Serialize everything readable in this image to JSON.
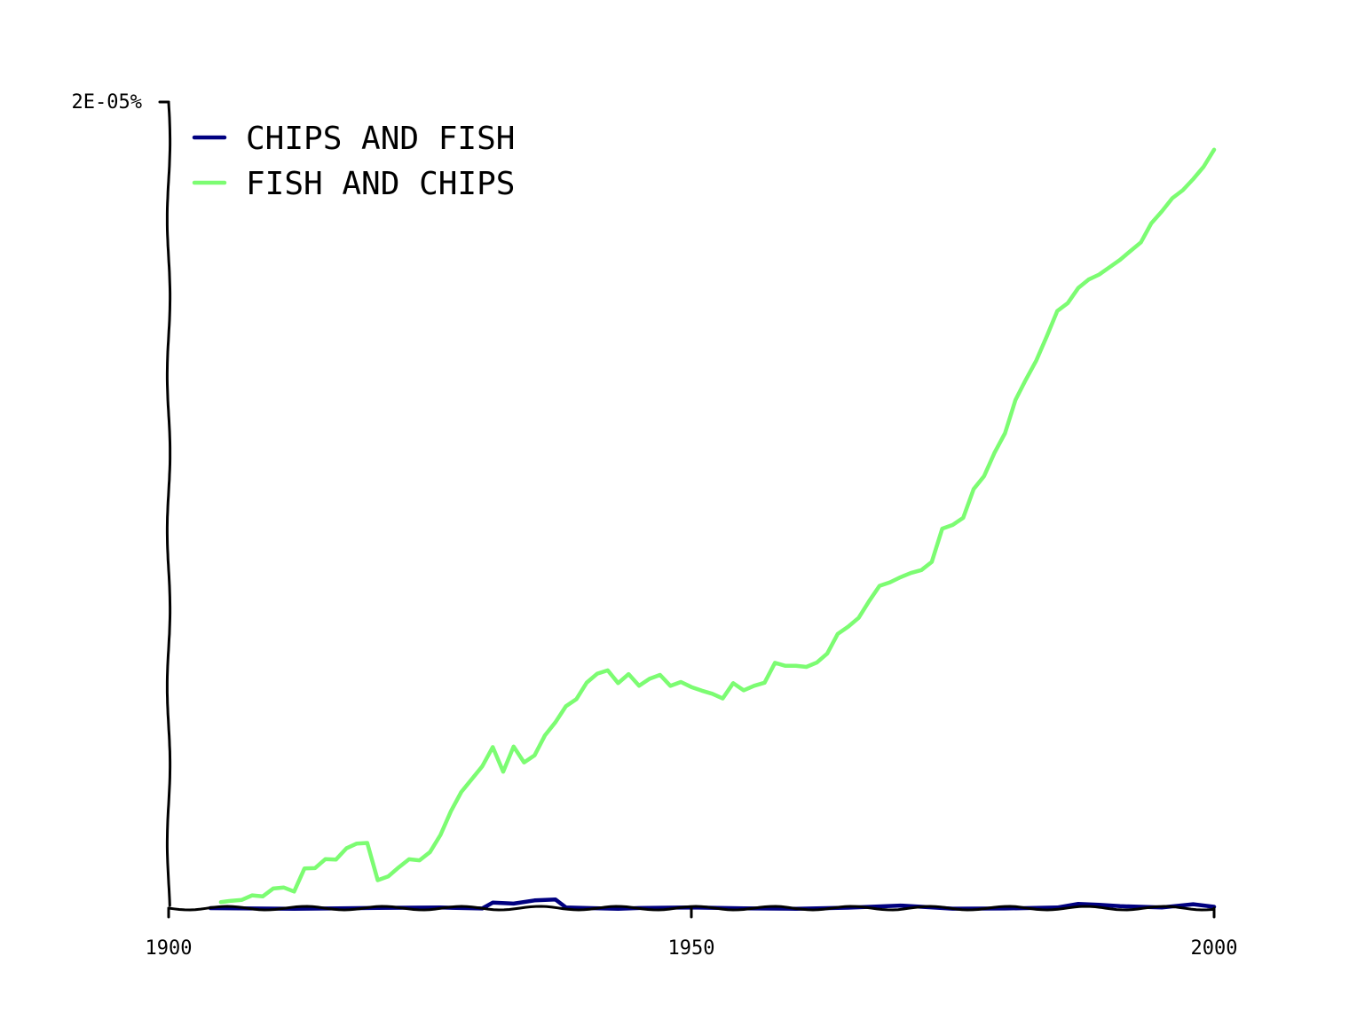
{
  "chart_data": {
    "type": "line",
    "title": "",
    "xlabel": "",
    "ylabel": "",
    "xlim": [
      1900,
      2000
    ],
    "ylim": [
      0,
      2e-05
    ],
    "x_ticks": [
      1900,
      1950,
      2000
    ],
    "x_tick_labels": [
      "1900",
      "1950",
      "2000"
    ],
    "y_tick_labels": [
      "2E-05%"
    ],
    "y_ticks": [
      2e-05
    ],
    "legend_placement": "top-left",
    "grid": false,
    "series": [
      {
        "name": "CHIPS AND FISH",
        "color": "#000080",
        "x": [
          1904,
          1912,
          1920,
          1926,
          1930,
          1931,
          1933,
          1935,
          1936,
          1937,
          1938,
          1940,
          1943,
          1945,
          1950,
          1955,
          1960,
          1965,
          1970,
          1975,
          1980,
          1985,
          1987,
          1989,
          1991,
          1995,
          1998,
          2000
        ],
        "values": [
          0.0,
          0.0,
          0.0,
          0.0,
          0.0,
          1.5e-07,
          1e-07,
          1.8e-07,
          2.2e-07,
          2.2e-07,
          0.0,
          0.0,
          0.0,
          0.0,
          0.0,
          0.0,
          0.0,
          0.0,
          5e-08,
          0.0,
          0.0,
          0.0,
          1e-07,
          1e-07,
          5e-08,
          0.0,
          1e-07,
          5e-08
        ]
      },
      {
        "name": "FISH AND CHIPS",
        "color": "#7cfc72",
        "x": [
          1905,
          1906,
          1907,
          1908,
          1909,
          1910,
          1911,
          1912,
          1913,
          1914,
          1915,
          1916,
          1917,
          1918,
          1919,
          1920,
          1921,
          1922,
          1923,
          1924,
          1925,
          1926,
          1927,
          1928,
          1929,
          1930,
          1931,
          1932,
          1933,
          1934,
          1935,
          1936,
          1937,
          1938,
          1939,
          1940,
          1941,
          1942,
          1943,
          1944,
          1945,
          1946,
          1947,
          1948,
          1949,
          1950,
          1951,
          1952,
          1953,
          1954,
          1955,
          1956,
          1957,
          1958,
          1959,
          1960,
          1961,
          1962,
          1963,
          1964,
          1965,
          1966,
          1967,
          1968,
          1969,
          1970,
          1971,
          1972,
          1973,
          1974,
          1975,
          1976,
          1977,
          1978,
          1979,
          1980,
          1981,
          1982,
          1983,
          1984,
          1985,
          1986,
          1987,
          1988,
          1989,
          1990,
          1991,
          1992,
          1993,
          1994,
          1995,
          1996,
          1997,
          1998,
          1999,
          2000
        ],
        "values": [
          1.5e-07,
          2e-07,
          2e-07,
          3e-07,
          3e-07,
          5e-07,
          5e-07,
          4e-07,
          1e-06,
          1e-06,
          1.2e-06,
          1.2e-06,
          1.5e-06,
          1.6e-06,
          1.6e-06,
          7e-07,
          8e-07,
          1e-06,
          1.2e-06,
          1.2e-06,
          1.4e-06,
          1.8e-06,
          2.4e-06,
          2.9e-06,
          3.2e-06,
          3.5e-06,
          4e-06,
          3.4e-06,
          4e-06,
          3.6e-06,
          3.8e-06,
          4.3e-06,
          4.6e-06,
          5e-06,
          5.2e-06,
          5.6e-06,
          5.8e-06,
          5.9e-06,
          5.6e-06,
          5.8e-06,
          5.5e-06,
          5.7e-06,
          5.8e-06,
          5.5e-06,
          5.6e-06,
          5.5e-06,
          5.4e-06,
          5.3e-06,
          5.2e-06,
          5.6e-06,
          5.4e-06,
          5.5e-06,
          5.6e-06,
          6.1e-06,
          6e-06,
          6e-06,
          6e-06,
          6.1e-06,
          6.3e-06,
          6.8e-06,
          7e-06,
          7.2e-06,
          7.6e-06,
          8e-06,
          8.1e-06,
          8.2e-06,
          8.3e-06,
          8.4e-06,
          8.6e-06,
          9.4e-06,
          9.5e-06,
          9.7e-06,
          1.04e-05,
          1.07e-05,
          1.13e-05,
          1.18e-05,
          1.26e-05,
          1.31e-05,
          1.36e-05,
          1.42e-05,
          1.48e-05,
          1.5e-05,
          1.54e-05,
          1.56e-05,
          1.57e-05,
          1.59e-05,
          1.61e-05,
          1.63e-05,
          1.65e-05,
          1.7e-05,
          1.73e-05,
          1.76e-05,
          1.78e-05,
          1.81e-05,
          1.84e-05,
          1.88e-05
        ]
      }
    ]
  }
}
